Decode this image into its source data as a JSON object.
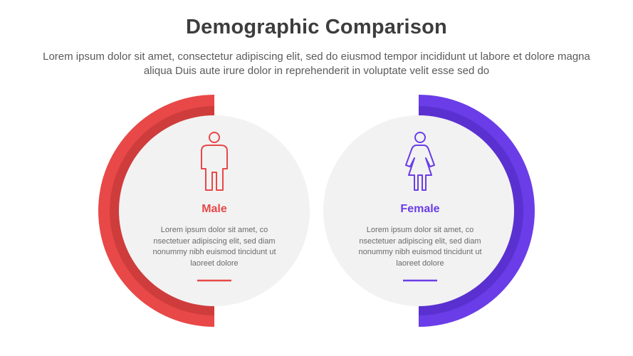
{
  "header": {
    "title": "Demographic Comparison",
    "subtitle": "Lorem ipsum dolor sit amet, consectetur adipiscing elit, sed do eiusmod tempor incididunt ut labore et dolore magna aliqua Duis aute irure dolor in reprehenderit in voluptate velit esse sed do"
  },
  "cards": [
    {
      "label": "Male",
      "icon": "male-person-icon",
      "color": "#e84848",
      "color_dark": "#cf3c3c",
      "description": "Lorem ipsum dolor sit amet, co nsectetuer adipiscing elit, sed diam nonummy nibh euismod tincidunt ut laoreet dolore"
    },
    {
      "label": "Female",
      "icon": "female-person-icon",
      "color": "#6a3de8",
      "color_dark": "#5a31d0",
      "description": "Lorem ipsum dolor sit amet, co nsectetuer adipiscing elit, sed diam nonummy nibh euismod tincidunt ut laoreet dolore"
    }
  ],
  "colors": {
    "circle_fill": "#f2f2f2",
    "title": "#3d3d3d"
  }
}
